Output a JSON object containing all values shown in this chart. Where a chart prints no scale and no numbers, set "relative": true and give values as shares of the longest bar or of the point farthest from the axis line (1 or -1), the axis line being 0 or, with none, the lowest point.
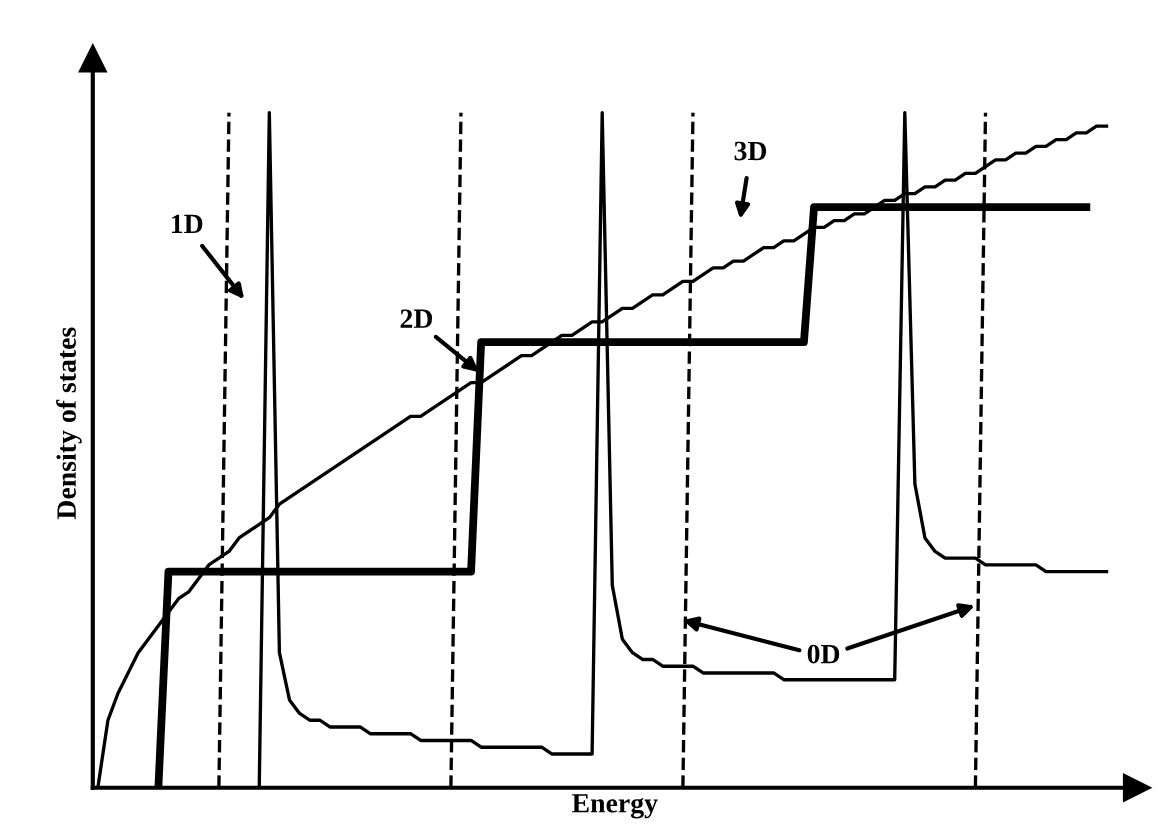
{
  "chart_data": {
    "type": "line",
    "relative": true,
    "xlabel": "Energy",
    "ylabel": "Density of states",
    "categories": [
      null,
      null,
      null,
      null,
      null,
      null,
      null,
      null,
      null,
      null,
      null,
      null,
      null,
      null,
      null,
      null,
      null,
      null,
      null,
      null,
      null,
      null,
      null,
      null,
      null,
      null,
      null,
      null,
      null,
      null,
      null,
      null,
      null,
      null,
      null,
      null,
      null,
      null,
      null,
      null,
      null,
      null,
      null,
      null,
      null,
      null,
      null,
      null,
      null,
      null,
      null,
      null,
      null,
      null,
      null,
      null,
      null,
      null,
      null,
      null,
      null,
      null,
      null,
      null,
      null,
      null,
      null,
      null,
      null,
      null,
      null,
      null,
      null,
      null,
      null,
      null,
      null,
      null,
      null,
      null,
      null,
      null,
      null,
      null,
      null,
      null,
      null,
      null,
      null,
      null,
      null,
      null,
      null,
      null,
      null,
      null,
      null,
      null,
      null,
      null,
      null
    ],
    "series": [
      {
        "color": "#000000",
        "line_style": "solid",
        "values": [
          0,
          0.1,
          0.14,
          0.17,
          0.2,
          0.22,
          0.24,
          0.26,
          0.28,
          0.29,
          0.31,
          0.33,
          0.34,
          0.35,
          0.37,
          0.38,
          0.39,
          0.4,
          0.42,
          0.43,
          0.44,
          0.45,
          0.46,
          0.47,
          0.48,
          0.49,
          0.5,
          0.51,
          0.52,
          0.53,
          0.54,
          0.55,
          0.55,
          0.56,
          0.57,
          0.58,
          0.59,
          0.6,
          0.6,
          0.61,
          0.62,
          0.63,
          0.64,
          0.64,
          0.65,
          0.66,
          0.67,
          0.67,
          0.68,
          0.69,
          0.69,
          0.7,
          0.71,
          0.71,
          0.72,
          0.73,
          0.73,
          0.74,
          0.75,
          0.75,
          0.76,
          0.77,
          0.77,
          0.78,
          0.78,
          0.79,
          0.8,
          0.8,
          0.81,
          0.81,
          0.82,
          0.83,
          0.83,
          0.84,
          0.84,
          0.85,
          0.85,
          0.86,
          0.87,
          0.87,
          0.88,
          0.88,
          0.89,
          0.89,
          0.9,
          0.9,
          0.91,
          0.91,
          0.92,
          0.93,
          0.93,
          0.94,
          0.94,
          0.95,
          0.95,
          0.96,
          0.96,
          0.97,
          0.97,
          0.98,
          0.98
        ]
      },
      {
        "color": "#000000",
        "line_style": "solid",
        "values": [
          null,
          null,
          null,
          null,
          null,
          null,
          0,
          0.32,
          0.32,
          0.32,
          0.32,
          0.32,
          0.32,
          0.32,
          0.32,
          0.32,
          0.32,
          0.32,
          0.32,
          0.32,
          0.32,
          0.32,
          0.32,
          0.32,
          0.32,
          0.32,
          0.32,
          0.32,
          0.32,
          0.32,
          0.32,
          0.32,
          0.32,
          0.32,
          0.32,
          0.32,
          0.32,
          0.32,
          0.66,
          0.66,
          0.66,
          0.66,
          0.66,
          0.66,
          0.66,
          0.66,
          0.66,
          0.66,
          0.66,
          0.66,
          0.66,
          0.66,
          0.66,
          0.66,
          0.66,
          0.66,
          0.66,
          0.66,
          0.66,
          0.66,
          0.66,
          0.66,
          0.66,
          0.66,
          0.66,
          0.66,
          0.66,
          0.66,
          0.66,
          0.66,
          0.66,
          0.86,
          0.86,
          0.86,
          0.86,
          0.86,
          0.86,
          0.86,
          0.86,
          0.86,
          0.86,
          0.86,
          0.86,
          0.86,
          0.86,
          0.86,
          0.86,
          0.86,
          0.86,
          0.86,
          0.86,
          0.86,
          0.86,
          0.86,
          0.86,
          0.86,
          0.86,
          0.86,
          0.86,
          null,
          null
        ]
      },
      {
        "color": "#000000",
        "line_style": "solid",
        "values": [
          null,
          null,
          null,
          null,
          null,
          null,
          null,
          null,
          null,
          null,
          null,
          null,
          null,
          null,
          null,
          null,
          0,
          1.0,
          0.2,
          0.13,
          0.11,
          0.1,
          0.1,
          0.09,
          0.09,
          0.09,
          0.09,
          0.08,
          0.08,
          0.08,
          0.08,
          0.08,
          0.07,
          0.07,
          0.07,
          0.07,
          0.07,
          0.07,
          0.06,
          0.06,
          0.06,
          0.06,
          0.06,
          0.06,
          0.06,
          0.05,
          0.05,
          0.05,
          0.05,
          0.05,
          1.0,
          0.3,
          0.22,
          0.2,
          0.19,
          0.19,
          0.18,
          0.18,
          0.18,
          0.18,
          0.17,
          0.17,
          0.17,
          0.17,
          0.17,
          0.17,
          0.17,
          0.17,
          0.16,
          0.16,
          0.16,
          0.16,
          0.16,
          0.16,
          0.16,
          0.16,
          0.16,
          0.16,
          0.16,
          0.16,
          1.0,
          0.45,
          0.37,
          0.35,
          0.34,
          0.34,
          0.34,
          0.34,
          0.33,
          0.33,
          0.33,
          0.33,
          0.33,
          0.33,
          0.32,
          0.32,
          0.32,
          0.32,
          0.32,
          0.32,
          0.32
        ]
      },
      {
        "color": "#000000",
        "line_style": "dashed",
        "values": [
          null,
          null,
          null,
          null,
          null,
          null,
          null,
          null,
          null,
          null,
          null,
          null,
          0,
          1.0,
          null,
          null,
          null,
          null,
          null,
          null,
          null,
          null,
          null,
          null,
          null,
          null,
          null,
          null,
          null,
          null,
          null,
          null,
          null,
          null,
          null,
          0,
          1.0,
          null,
          null,
          null,
          null,
          null,
          null,
          null,
          null,
          null,
          null,
          null,
          null,
          null,
          null,
          null,
          null,
          null,
          null,
          null,
          null,
          null,
          0,
          1.0,
          null,
          null,
          null,
          null,
          null,
          null,
          null,
          null,
          null,
          null,
          null,
          null,
          null,
          null,
          null,
          null,
          null,
          null,
          null,
          null,
          null,
          null,
          null,
          null,
          null,
          null,
          null,
          0,
          1.0,
          null,
          null,
          null,
          null,
          null,
          null,
          null,
          null,
          null,
          null,
          null,
          null
        ]
      }
    ],
    "annotations": [
      "1D",
      "2D",
      "3D",
      "0D"
    ]
  }
}
